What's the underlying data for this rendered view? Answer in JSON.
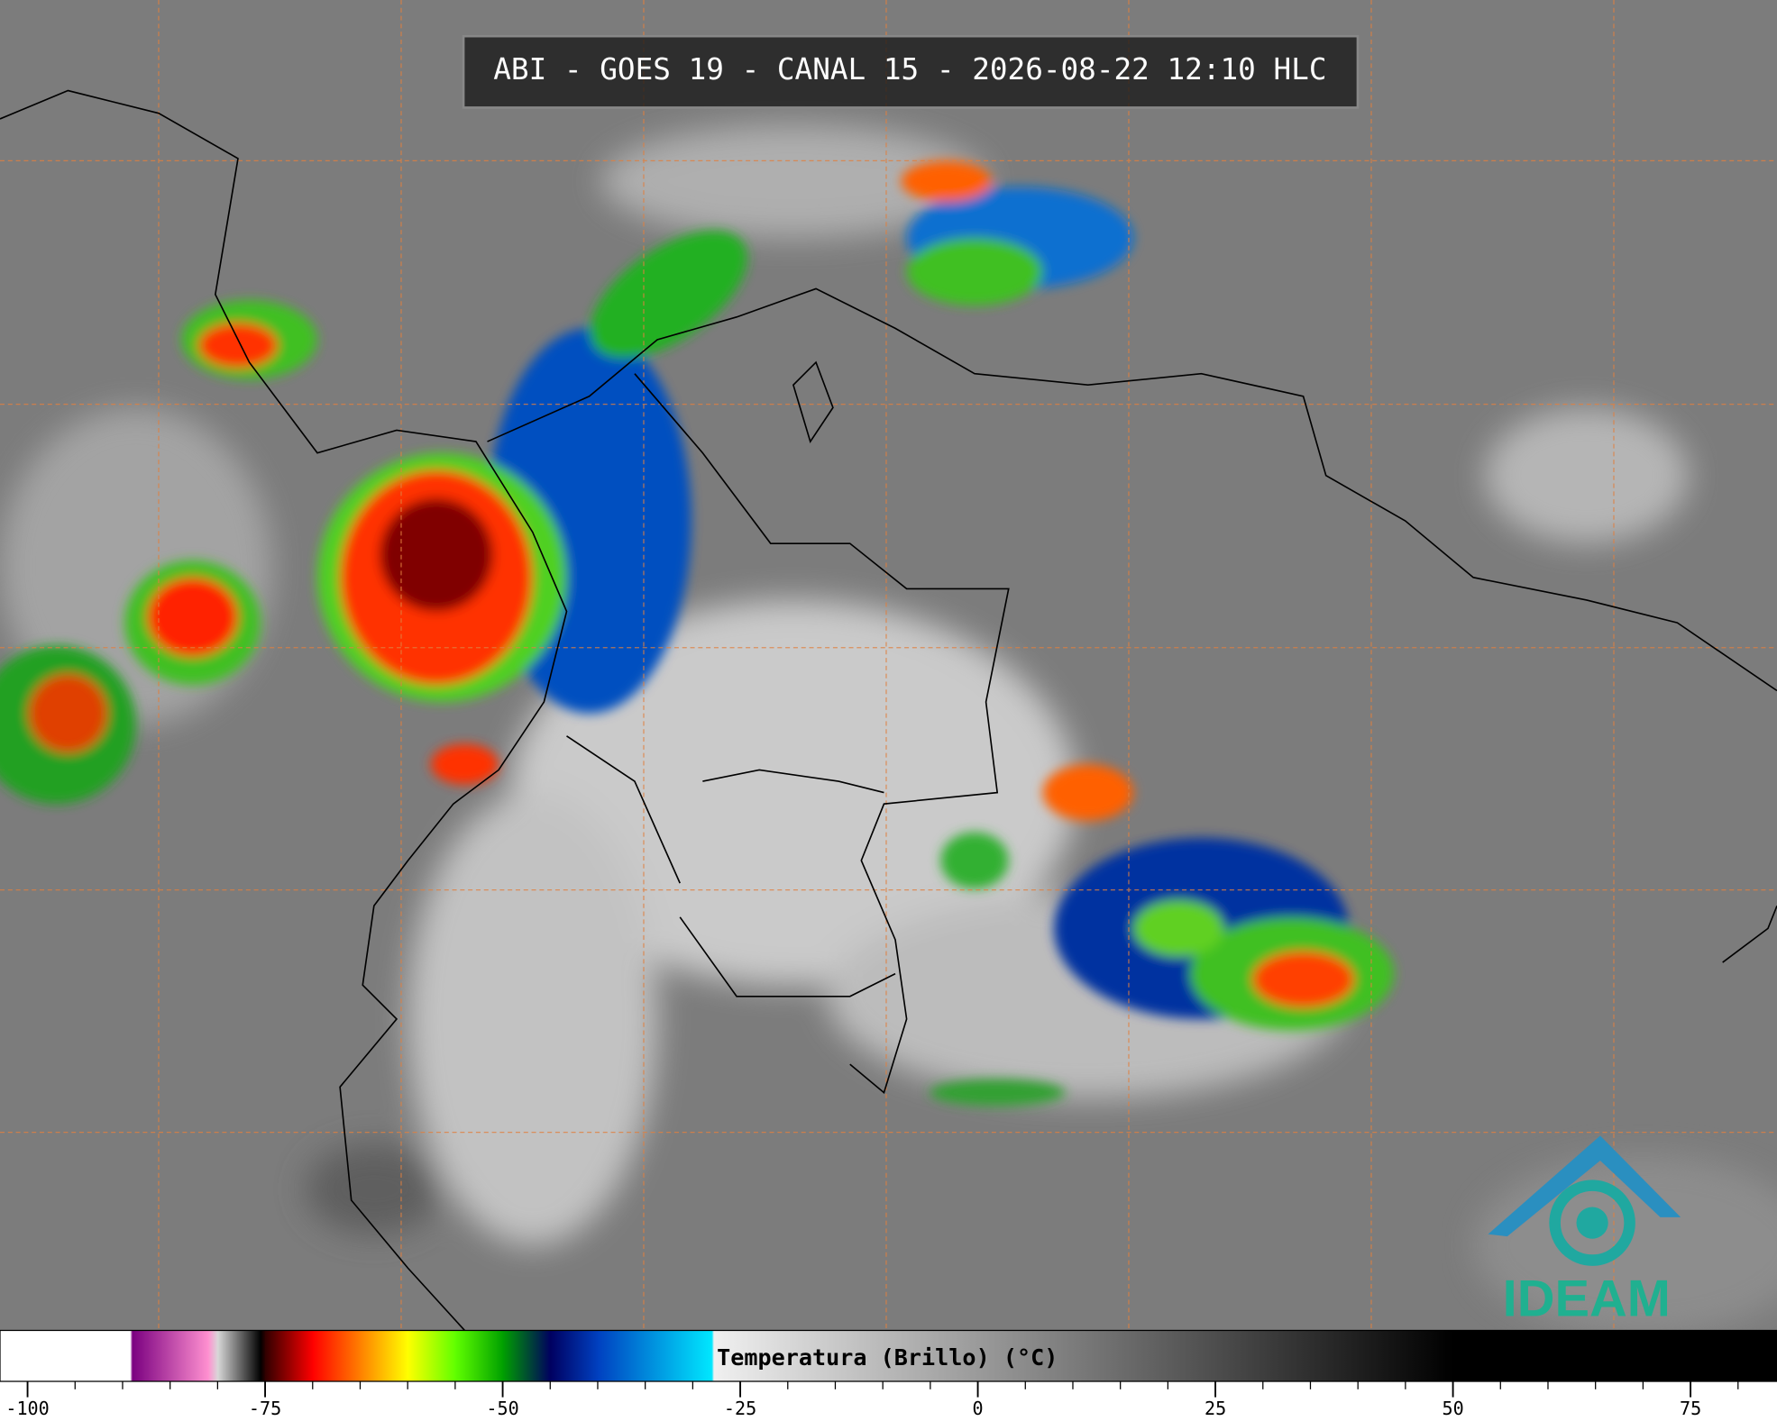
{
  "title": "ABI - GOES 19 - CANAL 15 - 2026-08-22 12:10 HLC",
  "logo": "IDEAM",
  "colorbar": {
    "label": "Temperatura (Brillo) (°C)",
    "xlim": [
      -102.9,
      84.1
    ],
    "xticks": [
      -100,
      -75,
      -50,
      -25,
      0,
      25,
      50,
      75
    ],
    "minor_xticks": [
      -100,
      -95,
      -90,
      -85,
      -80,
      -75,
      -70,
      -65,
      -60,
      -55,
      -50,
      -45,
      -40,
      -35,
      -30,
      -25,
      -20,
      -15,
      -10,
      -5,
      0,
      5,
      10,
      15,
      20,
      25,
      30,
      35,
      40,
      45,
      50,
      55,
      60,
      65,
      70,
      75,
      80
    ],
    "colormap": [
      {
        "value": -102.9,
        "color": "#ffffff"
      },
      {
        "value": -89.2,
        "color": "#ffffff"
      },
      {
        "value": -89,
        "color": "#7a0080"
      },
      {
        "value": -81,
        "color": "#ff90d0"
      },
      {
        "value": -80,
        "color": "#d8d8d8"
      },
      {
        "value": -75.5,
        "color": "#000000"
      },
      {
        "value": -75,
        "color": "#300000"
      },
      {
        "value": -70,
        "color": "#ff0000"
      },
      {
        "value": -65,
        "color": "#ff8000"
      },
      {
        "value": -60,
        "color": "#ffff00"
      },
      {
        "value": -55,
        "color": "#60ff00"
      },
      {
        "value": -50,
        "color": "#00a000"
      },
      {
        "value": -45,
        "color": "#000060"
      },
      {
        "value": -40,
        "color": "#0040c0"
      },
      {
        "value": -28,
        "color": "#00e8ff"
      },
      {
        "value": -27.8,
        "color": "#f0f0f0"
      },
      {
        "value": 50,
        "color": "#000000"
      },
      {
        "value": 84.1,
        "color": "#000000"
      }
    ]
  }
}
